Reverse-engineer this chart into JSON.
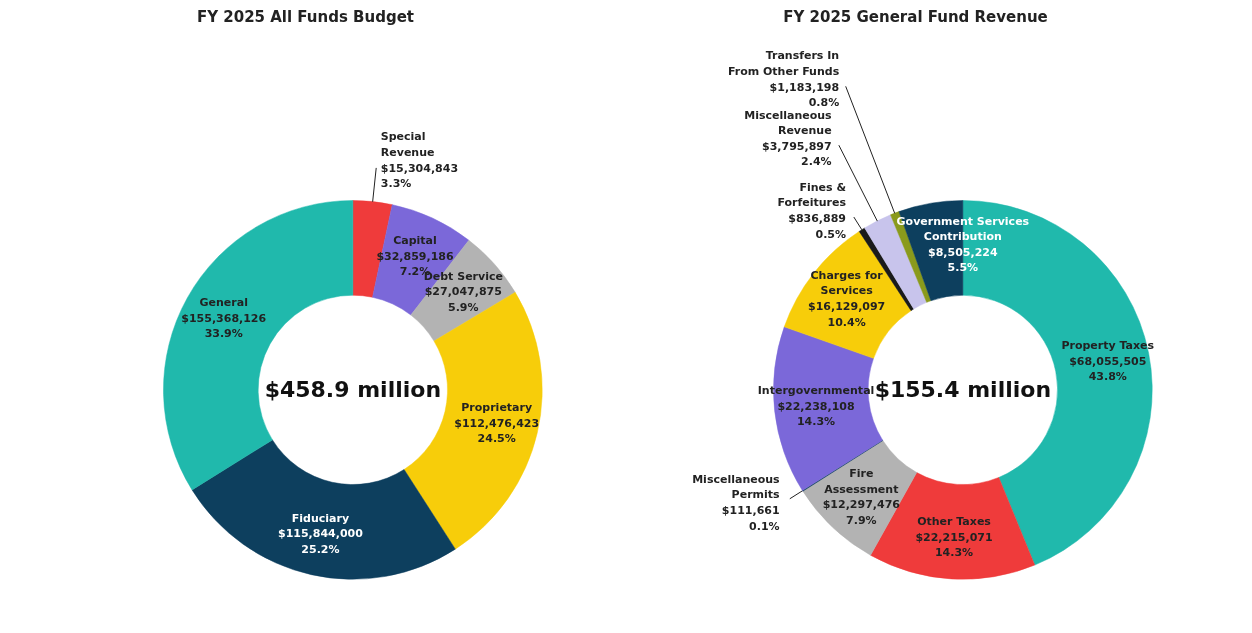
{
  "chart_data": [
    {
      "type": "donut",
      "title": "FY 2025 All Funds Budget",
      "annotations": [
        "$458.9 million"
      ],
      "categories": [
        "Special Revenue",
        "Capital",
        "Debt Service",
        "Proprietary",
        "Fiduciary",
        "General"
      ],
      "values": [
        15304843,
        32859186,
        27047875,
        112476423,
        115844000,
        155368126
      ],
      "value_labels": [
        "$15,304,843\n3.3%",
        "$32,859,186\n7.2%",
        "$27,047,875\n5.9%",
        "$112,476,423\n24.5%",
        "$115,844,000\n25.2%",
        "$155,368,126\n33.9%"
      ],
      "colors": [
        "#ef3b3b",
        "#7b68d9",
        "#b3b3b3",
        "#f7cd0a",
        "#0d3f5e",
        "#20b9ac"
      ]
    },
    {
      "type": "donut",
      "title": "FY 2025 General Fund Revenue",
      "annotations": [
        "$155.4 million"
      ],
      "categories": [
        "Property Taxes",
        "Other Taxes",
        "Fire Assessment",
        "Miscellaneous Permits",
        "Intergovernmental",
        "Charges for Services",
        "Fines & Forfeitures",
        "Miscellaneous Revenue",
        "Transfers In From Other Funds",
        "Government Services Contribution"
      ],
      "values": [
        68055505,
        22215071,
        12297476,
        111661,
        22238108,
        16129097,
        836889,
        3795897,
        1183198,
        8505224
      ],
      "value_labels": [
        "$68,055,505\n43.8%",
        "$22,215,071\n14.3%",
        "$12,297,476\n7.9%",
        "$111,661\n0.1%",
        "$22,238,108\n14.3%",
        "$16,129,097\n10.4%",
        "$836,889\n0.5%",
        "$3,795,897\n2.4%",
        "$1,183,198\n0.8%",
        "$8,505,224\n5.5%"
      ],
      "colors": [
        "#20b9ac",
        "#ef3b3b",
        "#b3b3b3",
        "#0d3f5e",
        "#7b68d9",
        "#f7cd0a",
        "#1a1a1a",
        "#c8c4ec",
        "#8a9a1c",
        "#0d3f5e"
      ]
    }
  ]
}
